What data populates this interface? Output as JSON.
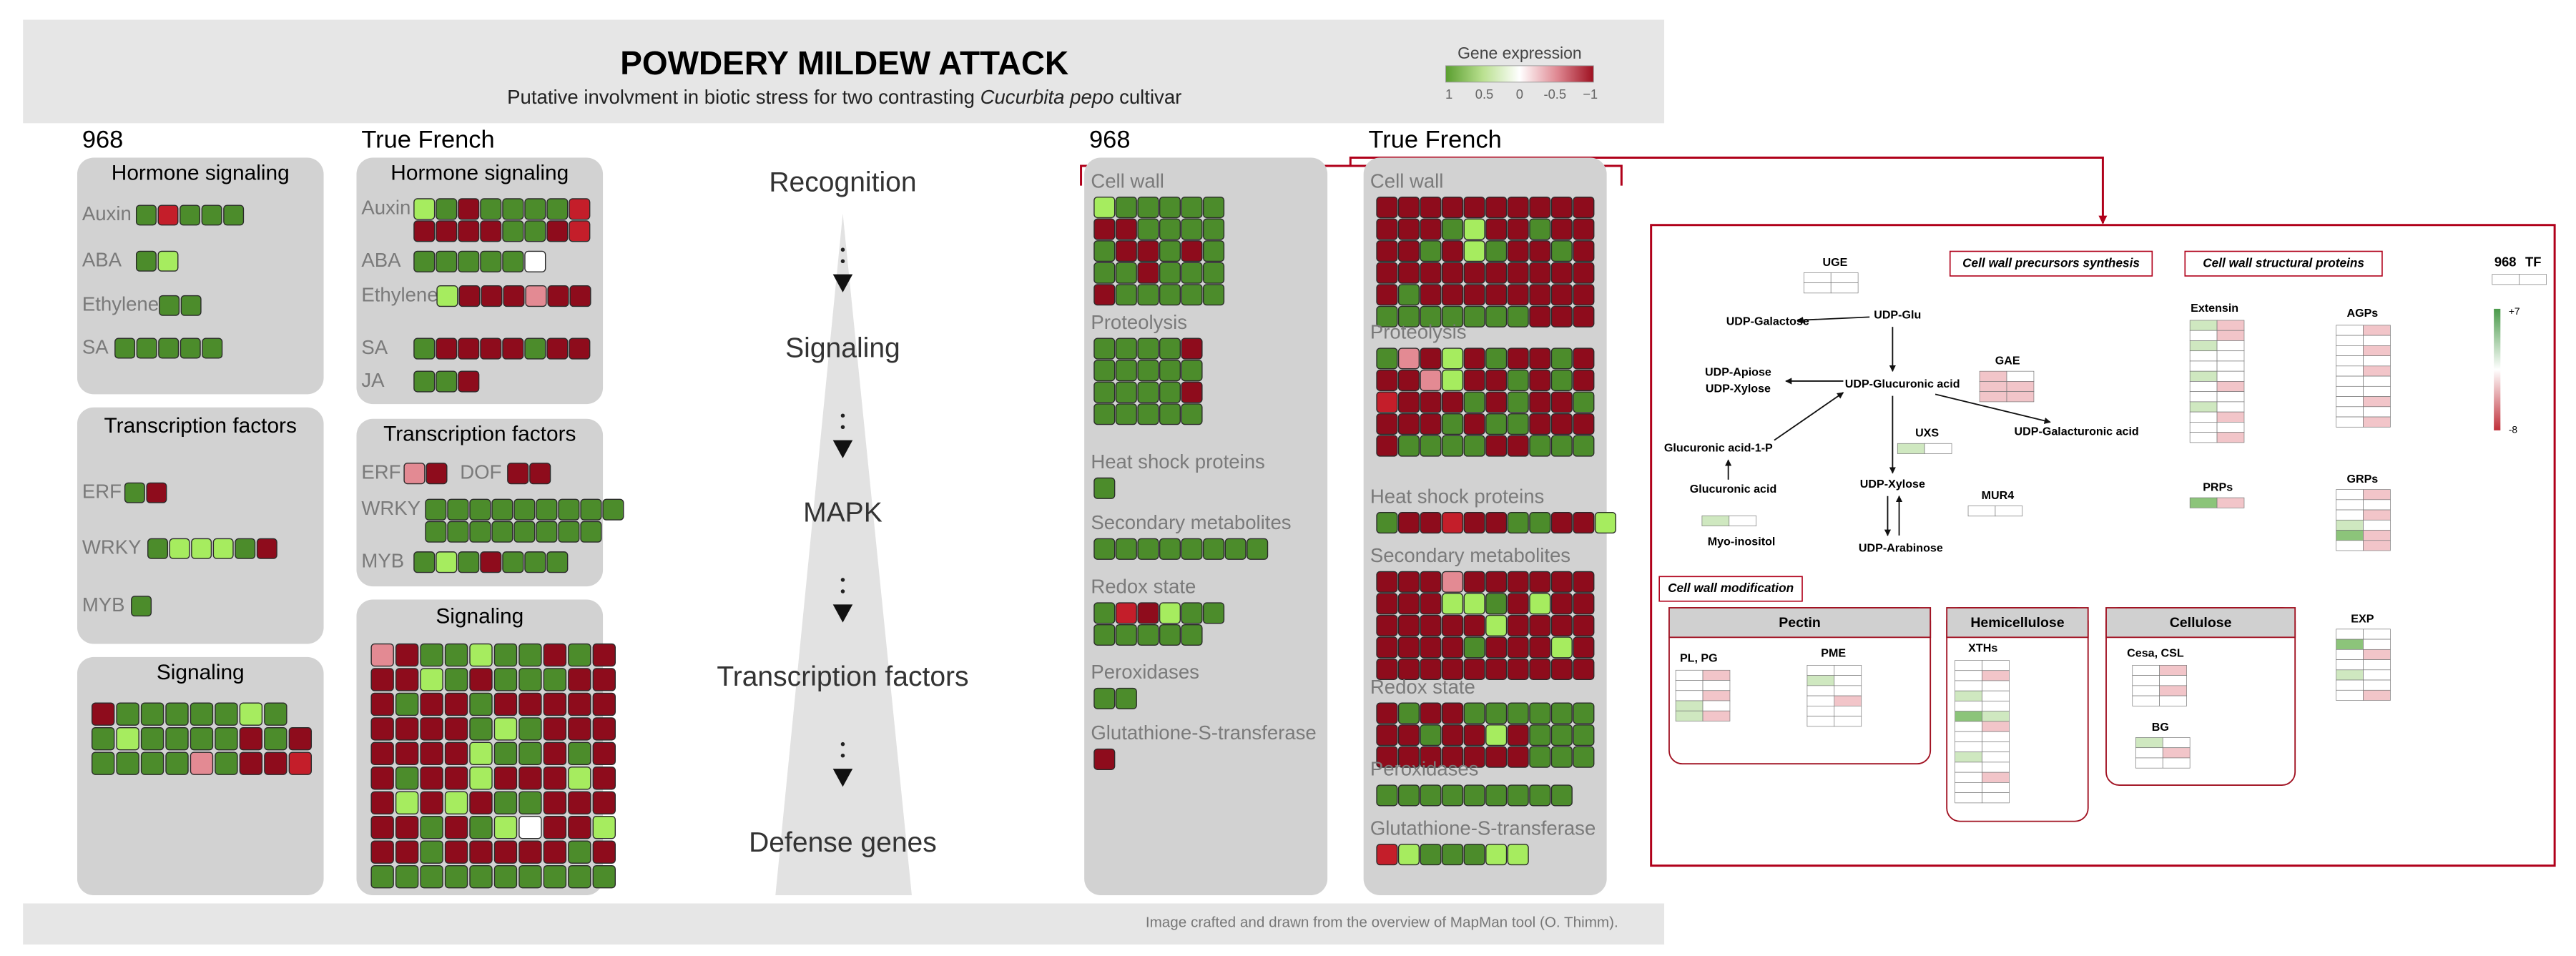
{
  "header": {
    "title": "POWDERY MILDEW ATTACK",
    "subtitle_prefix": "Putative involvment in biotic stress for two contrasting ",
    "subtitle_italic": "Cucurbita pepo",
    "subtitle_suffix": " cultivar"
  },
  "legend": {
    "title": "Gene expression",
    "ticks": [
      "1",
      "0.5",
      "0",
      "-0.5",
      "−1"
    ],
    "colors": [
      "#5a9e2f",
      "#b9e08f",
      "#ffffff",
      "#e08a94",
      "#9e1020"
    ]
  },
  "footer": "Image crafted and drawn from the overview of MapMan tool (O. Thimm).",
  "cultivars": [
    "968",
    "True French"
  ],
  "palette": {
    "D": "#4c8c2b",
    "L": "#a6ec5f",
    "R": "#8e0c1c",
    "r": "#c41e2a",
    "p": "#e38a93",
    "w": "#ffffff",
    "g": "#cfe8c0",
    "q": "#f2c5c9",
    "G": "#8cc47a"
  },
  "panels": [
    {
      "title": "Hormone signaling",
      "groups": [
        {
          "label": "Auxin",
          "rows": [
            "DrDDD"
          ]
        },
        {
          "label": "ABA",
          "rows": [
            "DL"
          ]
        },
        {
          "label": "Ethylene",
          "rows": [
            "DD"
          ]
        },
        {
          "label": "SA",
          "rows": [
            "DDDDD"
          ]
        }
      ]
    },
    {
      "title": "Transcription factors",
      "groups": [
        {
          "label": "ERF",
          "rows": [
            "DR"
          ]
        },
        {
          "label": "WRKY",
          "rows": [
            "DLLLDR"
          ]
        },
        {
          "label": "MYB",
          "rows": [
            "D"
          ]
        }
      ]
    },
    {
      "title": "Signaling",
      "groups": [
        {
          "rows": [
            "RDDDDDLD",
            "DLDDDDRDR",
            "DDDDpDRRr"
          ]
        }
      ]
    },
    {
      "title": "Hormone signaling",
      "groups": [
        {
          "label": "Auxin",
          "rows": [
            "LDRDDDDr",
            "RRRRDDRr"
          ]
        },
        {
          "label": "ABA",
          "rows": [
            "DDDDDw"
          ]
        },
        {
          "label": "Ethylene",
          "rows": [
            "LRRRpRR"
          ]
        },
        {
          "label": "SA",
          "rows": [
            "DRRRRDRR"
          ]
        },
        {
          "label": "JA",
          "rows": [
            "DDR"
          ]
        }
      ]
    },
    {
      "title": "Transcription factors",
      "groups": [
        {
          "label": "ERF",
          "rows": [
            "pR"
          ]
        },
        {
          "label": "DOF",
          "rows": [
            "RR"
          ]
        },
        {
          "label": "WRKY",
          "rows": [
            "DDDDDDDDD",
            "DDDDDDDD"
          ]
        },
        {
          "label": "MYB",
          "rows": [
            "DLDRDDD"
          ]
        }
      ]
    },
    {
      "title": "Signaling",
      "groups": [
        {
          "rows": [
            "pRDDLDDRDR",
            "RRLDRDDDRR",
            "RDRRDRRRRR",
            "RRRRDLDRRR",
            "RRRRLDDRDR",
            "RDRRLRRRLR",
            "RLRLRDDRRR",
            "RRDRDLwRRL",
            "RRDRRRRRDR",
            "DDDDDDDDDD"
          ]
        }
      ]
    },
    {
      "groups": [
        {
          "label": "Cell wall",
          "rows": [
            "LDDDDD",
            "RRDDDD",
            "DRRDRD",
            "DDRDDD",
            "RDDDDD"
          ]
        },
        {
          "label": "Proteolysis",
          "rows": [
            "DDDDR",
            "DDDDD",
            "DDDDR",
            "DDDDD"
          ]
        },
        {
          "label": "Heat shock proteins",
          "rows": [
            "D"
          ]
        },
        {
          "label": "Secondary metabolites",
          "rows": [
            "DDDDDDDD"
          ]
        },
        {
          "label": "Redox state",
          "rows": [
            "DrRLDD",
            "DDDDD"
          ]
        },
        {
          "label": "Peroxidases",
          "rows": [
            "DD"
          ]
        },
        {
          "label": "Glutathione-S-transferase",
          "rows": [
            "R"
          ]
        }
      ]
    },
    {
      "groups": [
        {
          "label": "Cell wall",
          "rows": [
            "RRRRRRRRRR",
            "RRRDLRRDRR",
            "RRDRLDRRDR",
            "RRRRRRRRRR",
            "RDRRRRRRRR",
            "DDDDDDDRRR"
          ]
        },
        {
          "label": "Proteolysis",
          "rows": [
            "DpRLRDRRDR",
            "RRpLRRDRDR",
            "rRRRDRDRRD",
            "RRRDRDDRRR",
            "RDDDDRRDDD"
          ]
        },
        {
          "label": "Heat shock proteins",
          "rows": [
            "DRRrRRDDRRL"
          ]
        },
        {
          "label": "Secondary metabolites",
          "rows": [
            "RRRpRRRRRR",
            "RRRLLDRLRR",
            "RRRRRLRRRR",
            "RRRRDRRRLR",
            "RRRRRRRRRR"
          ]
        },
        {
          "label": "Redox state",
          "rows": [
            "RDRRDDDDDD",
            "RRDRRLRDDD",
            "RRRRRRRDDD"
          ]
        },
        {
          "label": "Peroxidases",
          "rows": [
            "DDDDDDDDD"
          ]
        },
        {
          "label": "Glutathione-S-transferase",
          "rows": [
            "rLDDDLL"
          ]
        }
      ]
    }
  ],
  "pipeline": [
    "Recognition",
    "Signaling",
    "MAPK",
    "Transcription factors",
    "Defense genes"
  ],
  "cell_wall_detail": {
    "sections": [
      "Cell wall precursors synthesis",
      "Cell wall structural proteins",
      "Cell wall modification"
    ],
    "columns": [
      "968",
      "TF"
    ],
    "column_rows": [
      "ww"
    ],
    "scale": [
      "+7",
      "-8"
    ],
    "scale_colors": [
      "#4a9a4a",
      "#ffffff",
      "#c0303a"
    ],
    "metabolites": [
      "UDP-Galactose",
      "UDP-Glu",
      "UDP-Apiose",
      "UDP-Xylose",
      "UDP-Glucuronic acid",
      "UDP-Galacturonic acid",
      "Glucuronic acid-1-P",
      "Glucuronic acid",
      "UDP-Xylose",
      "UDP-Arabinose",
      "Myo-inositol"
    ],
    "enzymes": [
      {
        "label": "UGE",
        "rows": [
          "ww",
          "ww"
        ]
      },
      {
        "label": "GAE",
        "rows": [
          "qw",
          "qq",
          "qq"
        ]
      },
      {
        "label": "UXS",
        "rows": [
          "gw"
        ]
      },
      {
        "label": "MUR4",
        "rows": [
          "ww"
        ]
      },
      {
        "rows": [
          "gw"
        ]
      }
    ],
    "modules": [
      {
        "title": "Pectin",
        "groups": [
          {
            "label": "PL, PG",
            "rows": [
              "wq",
              "ww",
              "wq",
              "gw",
              "gq"
            ]
          },
          {
            "label": "PME",
            "rows": [
              "ww",
              "gw",
              "ww",
              "wq",
              "ww",
              "ww"
            ]
          }
        ]
      },
      {
        "title": "Hemicellulose",
        "groups": [
          {
            "label": "XTHs",
            "rows": [
              "ww",
              "wq",
              "ww",
              "gw",
              "ww",
              "Gg",
              "wq",
              "ww",
              "ww",
              "gw",
              "ww",
              "wq",
              "ww",
              "ww"
            ]
          }
        ]
      },
      {
        "title": "Cellulose",
        "groups": [
          {
            "label": "Cesa, CSL",
            "rows": [
              "wq",
              "ww",
              "wq",
              "ww"
            ]
          },
          {
            "label": "BG",
            "rows": [
              "gw",
              "wq",
              "ww"
            ]
          }
        ]
      }
    ],
    "proteins": [
      {
        "label": "Extensin",
        "rows": [
          "gq",
          "wq",
          "gw",
          "ww",
          "ww",
          "gw",
          "wq",
          "ww",
          "gw",
          "wq",
          "ww",
          "wq"
        ]
      },
      {
        "label": "AGPs",
        "rows": [
          "wq",
          "ww",
          "wq",
          "ww",
          "wq",
          "ww",
          "ww",
          "wq",
          "ww",
          "wq"
        ]
      },
      {
        "label": "PRPs",
        "rows": [
          "Gq"
        ]
      },
      {
        "label": "GRPs",
        "rows": [
          "wq",
          "ww",
          "wq",
          "gw",
          "Gq",
          "wq"
        ]
      },
      {
        "label": "EXP",
        "rows": [
          "ww",
          "Gw",
          "wq",
          "ww",
          "gw",
          "ww",
          "wq"
        ]
      }
    ]
  }
}
